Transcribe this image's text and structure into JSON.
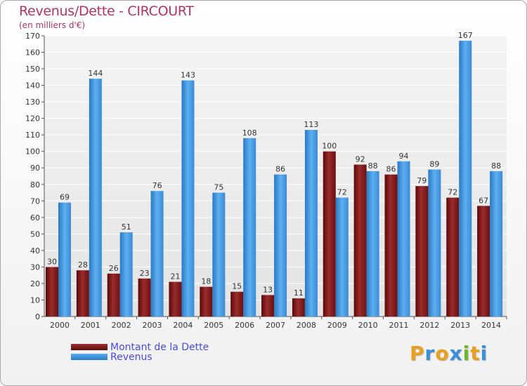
{
  "chart_data": {
    "type": "bar",
    "title": "Revenus/Dette - CIRCOURT",
    "subtitle": "(en milliers d'€)",
    "xlabel": "",
    "ylabel": "",
    "ylim": [
      0,
      170
    ],
    "yticks": [
      0,
      10,
      20,
      30,
      40,
      50,
      60,
      70,
      80,
      90,
      100,
      110,
      120,
      130,
      140,
      150,
      160,
      170
    ],
    "categories": [
      "2000",
      "2001",
      "2002",
      "2003",
      "2004",
      "2005",
      "2006",
      "2007",
      "2008",
      "2009",
      "2010",
      "2011",
      "2012",
      "2013",
      "2014"
    ],
    "series": [
      {
        "name": "Montant de la Dette",
        "color": "#7a1a1a",
        "values": [
          30,
          28,
          26,
          23,
          21,
          18,
          15,
          13,
          11,
          100,
          92,
          86,
          79,
          72,
          67
        ]
      },
      {
        "name": "Revenus",
        "color": "#3a8fd8",
        "values": [
          69,
          144,
          51,
          76,
          143,
          75,
          108,
          86,
          113,
          72,
          88,
          94,
          89,
          167,
          88
        ]
      }
    ],
    "grid": true,
    "legend": "bottom-left"
  },
  "logo": {
    "letters": [
      "P",
      "r",
      "o",
      "x",
      "i",
      "t",
      "i"
    ],
    "colors": [
      "#e8a020",
      "#3a8fd8",
      "#e8a020",
      "#3a8fd8",
      "#6bb82a",
      "#e8a020",
      "#3a8fd8"
    ]
  }
}
